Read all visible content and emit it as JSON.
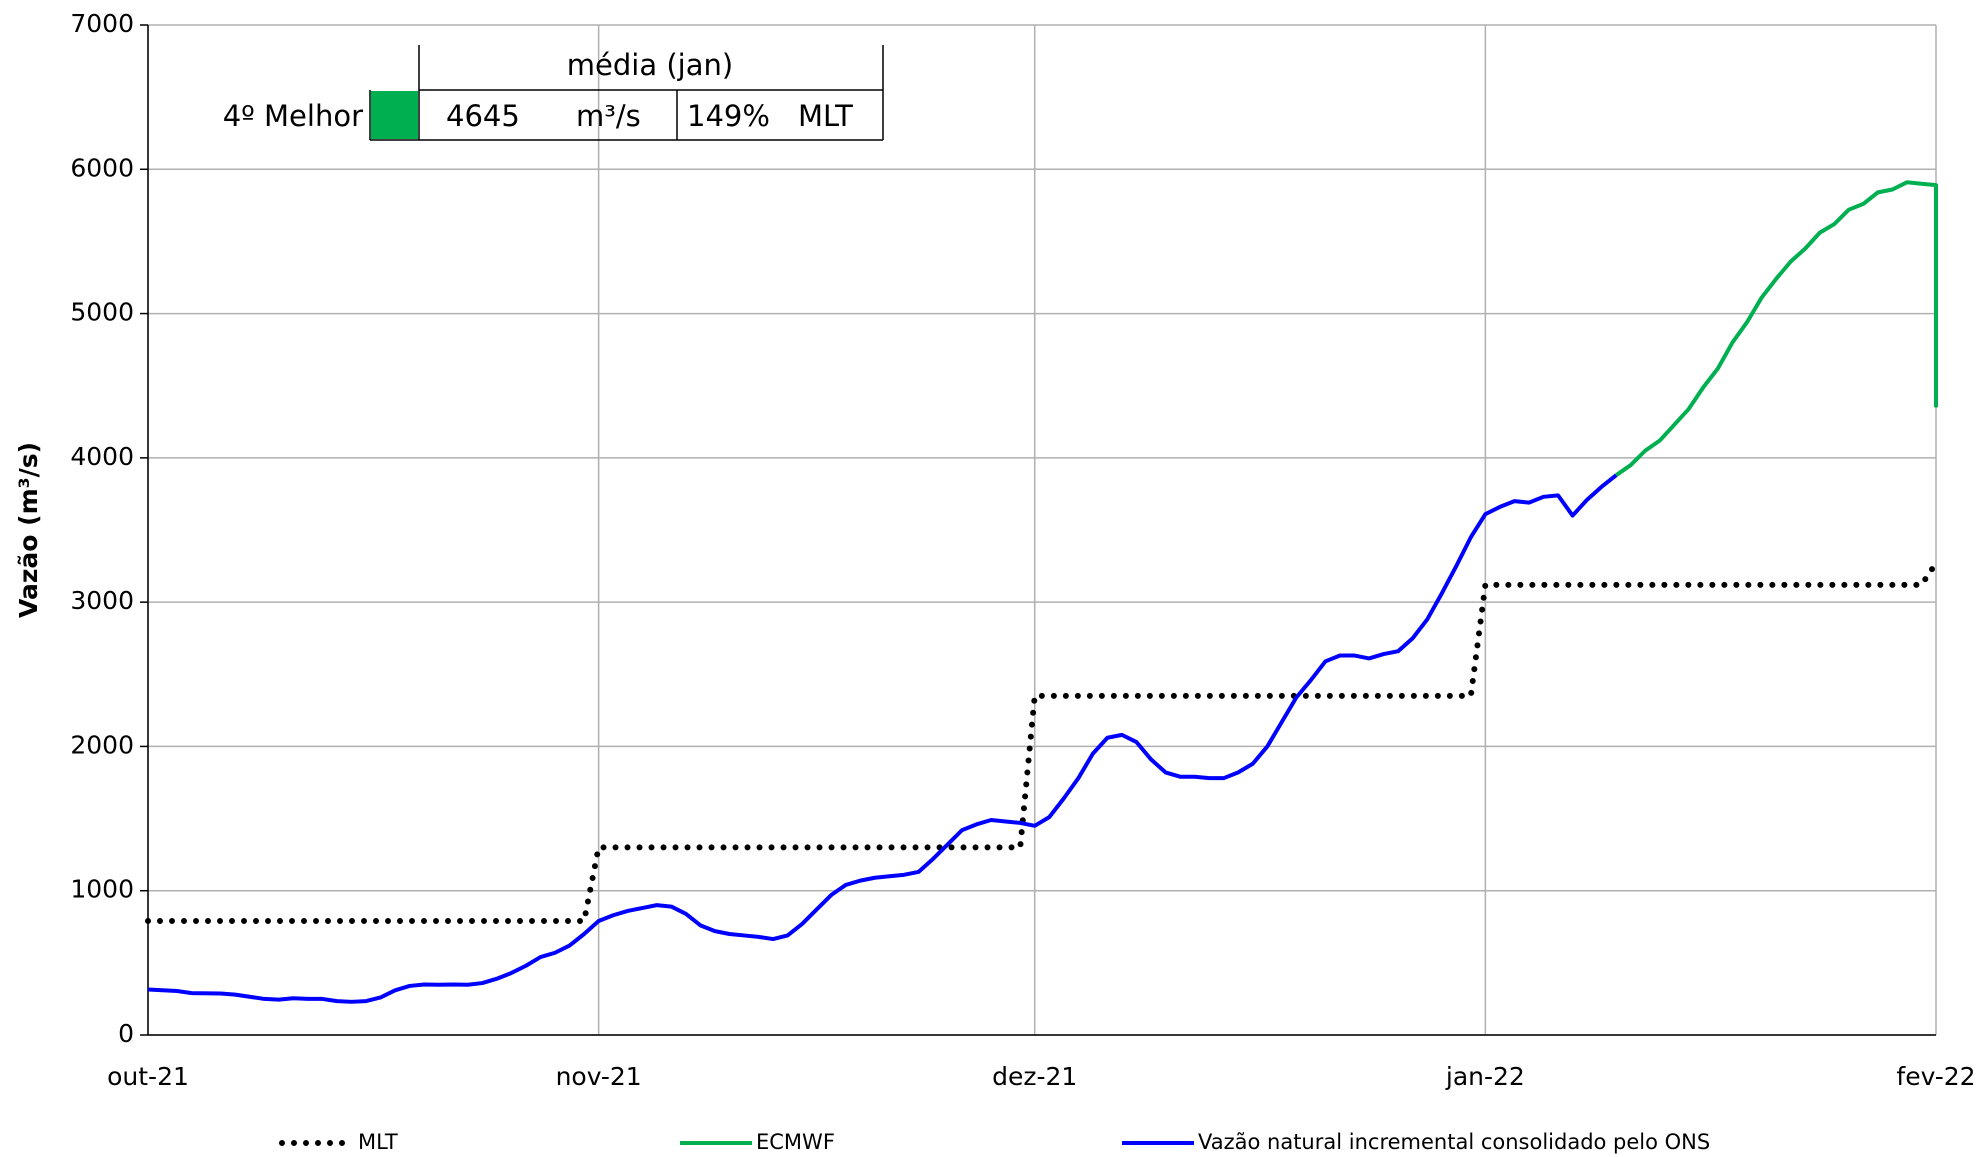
{
  "chart_data": {
    "type": "line",
    "y_label": "Vazão (m³/s)",
    "xlim": [
      0,
      123
    ],
    "xticks": [
      {
        "value": 0,
        "label": "out-21"
      },
      {
        "value": 31,
        "label": "nov-21"
      },
      {
        "value": 61,
        "label": "dez-21"
      },
      {
        "value": 92,
        "label": "jan-22"
      },
      {
        "value": 123,
        "label": "fev-22"
      }
    ],
    "ylim": [
      0,
      7000
    ],
    "yticks": [
      0,
      1000,
      2000,
      3000,
      4000,
      5000,
      6000,
      7000
    ],
    "grid": true,
    "legend": "bottom",
    "series": [
      {
        "name": "MLT",
        "color": "#000000",
        "style": "dotted",
        "x": [
          0,
          30,
          31,
          60,
          61,
          91,
          92,
          122,
          123
        ],
        "values": [
          790,
          790,
          1300,
          1300,
          2350,
          2350,
          3120,
          3120,
          3270
        ]
      },
      {
        "name": "ECMWF",
        "color": "#00b050",
        "style": "solid",
        "x": [
          101,
          102,
          103,
          104,
          105,
          106,
          107,
          108,
          109,
          110,
          111,
          112,
          113,
          114,
          115,
          116,
          117,
          118,
          119,
          120,
          121,
          122,
          123,
          123
        ],
        "values": [
          3880,
          3950,
          4050,
          4120,
          4230,
          4340,
          4490,
          4620,
          4800,
          4940,
          5110,
          5240,
          5360,
          5450,
          5560,
          5620,
          5720,
          5760,
          5840,
          5860,
          5910,
          5900,
          5890,
          4350
        ]
      },
      {
        "name": "Vazão natural incremental consolidado pelo ONS",
        "color": "#0000ff",
        "style": "solid",
        "x": [
          0,
          2,
          3,
          5,
          6,
          8,
          9,
          10,
          11,
          12,
          13,
          14,
          15,
          16,
          17,
          18,
          19,
          20,
          21,
          22,
          23,
          24,
          25,
          26,
          27,
          28,
          29,
          30,
          31,
          32,
          33,
          34,
          35,
          36,
          37,
          38,
          39,
          40,
          41,
          42,
          43,
          44,
          45,
          46,
          47,
          48,
          49,
          50,
          51,
          52,
          53,
          54,
          55,
          56,
          57,
          58,
          59,
          60,
          61,
          62,
          63,
          64,
          65,
          66,
          67,
          68,
          69,
          70,
          71,
          72,
          73,
          74,
          75,
          76,
          77,
          78,
          79,
          80,
          81,
          82,
          83,
          84,
          85,
          86,
          87,
          88,
          89,
          90,
          91,
          92,
          93,
          94,
          95,
          96,
          97,
          98,
          99,
          100,
          101
        ],
        "values": [
          315,
          305,
          290,
          288,
          280,
          250,
          245,
          255,
          250,
          250,
          235,
          230,
          235,
          260,
          310,
          340,
          350,
          348,
          350,
          348,
          360,
          390,
          430,
          480,
          540,
          570,
          620,
          700,
          790,
          830,
          860,
          880,
          900,
          890,
          840,
          760,
          720,
          700,
          690,
          680,
          665,
          690,
          770,
          870,
          970,
          1040,
          1070,
          1090,
          1100,
          1110,
          1130,
          1220,
          1320,
          1420,
          1460,
          1490,
          1480,
          1470,
          1450,
          1510,
          1640,
          1780,
          1950,
          2060,
          2080,
          2030,
          1910,
          1820,
          1790,
          1790,
          1780,
          1780,
          1820,
          1880,
          2000,
          2170,
          2340,
          2460,
          2590,
          2630,
          2630,
          2610,
          2640,
          2660,
          2750,
          2880,
          3060,
          3250,
          3450,
          3610,
          3660,
          3700,
          3690,
          3730,
          3740,
          3600,
          3710,
          3800,
          3880
        ]
      }
    ],
    "table": {
      "header": "média (jan)",
      "rank": "4º Melhor",
      "color": "#00b050",
      "value": 4645,
      "unit": "m³/s",
      "percent": "149%",
      "reference": "MLT"
    }
  }
}
